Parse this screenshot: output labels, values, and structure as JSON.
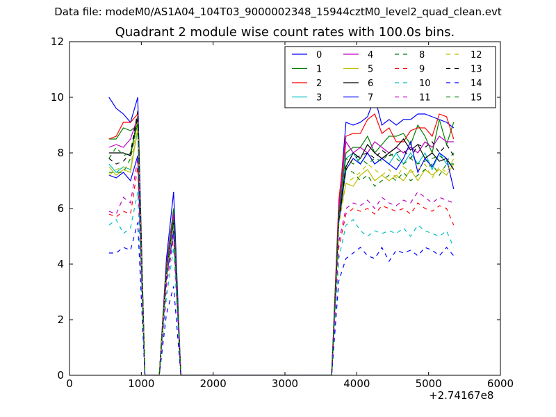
{
  "chart_data": {
    "type": "line",
    "suptitle": "Data file: modeM0/AS1A04_104T03_9000002348_15944cztM0_level2_quad_clean.evt",
    "title": "Quadrant 2 module wise count rates with 100.0s bins.",
    "xlabel": "",
    "ylabel": "",
    "x_offset_label": "+2.74167e8",
    "xlim": [
      0,
      6000
    ],
    "ylim": [
      0,
      12
    ],
    "xticks": [
      0,
      1000,
      2000,
      3000,
      4000,
      5000,
      6000
    ],
    "yticks": [
      0,
      2,
      4,
      6,
      8,
      10,
      12
    ],
    "grid": false,
    "legend": {
      "position": "top-right",
      "columns": 4
    },
    "x": [
      550,
      650,
      750,
      850,
      950,
      1050,
      1150,
      1250,
      1350,
      1450,
      1550,
      1650,
      1750,
      1850,
      1950,
      2050,
      2150,
      2250,
      2350,
      2450,
      2550,
      2650,
      2750,
      2850,
      2950,
      3050,
      3150,
      3250,
      3350,
      3450,
      3550,
      3650,
      3750,
      3850,
      3950,
      4050,
      4150,
      4250,
      4350,
      4450,
      4550,
      4650,
      4750,
      4850,
      4950,
      5050,
      5150,
      5250,
      5350
    ],
    "series": [
      {
        "name": "0",
        "color": "#0000ff",
        "dash": "solid",
        "values": [
          10.0,
          9.6,
          9.4,
          9.1,
          10.0,
          0,
          0,
          0,
          4.2,
          6.6,
          0,
          0,
          0,
          0,
          0,
          0,
          0,
          0,
          0,
          0,
          0,
          0,
          0,
          0,
          0,
          0,
          0,
          0,
          0,
          0,
          0,
          0,
          6.0,
          9.1,
          9.0,
          9.1,
          9.3,
          10.0,
          9.0,
          9.2,
          9.0,
          9.2,
          9.2,
          9.4,
          9.4,
          9.3,
          9.2,
          9.1,
          8.9
        ]
      },
      {
        "name": "1",
        "color": "#008000",
        "dash": "solid",
        "values": [
          8.5,
          8.5,
          8.9,
          8.8,
          9.0,
          0,
          0,
          0,
          4.0,
          6.0,
          0,
          0,
          0,
          0,
          0,
          0,
          0,
          0,
          0,
          0,
          0,
          0,
          0,
          0,
          0,
          0,
          0,
          0,
          0,
          0,
          0,
          0,
          6.0,
          8.0,
          8.2,
          8.2,
          8.6,
          8.0,
          8.3,
          8.6,
          8.6,
          8.7,
          8.3,
          9.0,
          8.6,
          8.0,
          9.2,
          8.3,
          9.1
        ]
      },
      {
        "name": "2",
        "color": "#ff0000",
        "dash": "solid",
        "values": [
          8.5,
          8.6,
          9.1,
          9.1,
          9.4,
          0,
          0,
          0,
          4.0,
          5.8,
          0,
          0,
          0,
          0,
          0,
          0,
          0,
          0,
          0,
          0,
          0,
          0,
          0,
          0,
          0,
          0,
          0,
          0,
          0,
          0,
          0,
          0,
          6.3,
          8.6,
          8.7,
          8.7,
          9.2,
          9.4,
          8.7,
          8.9,
          8.4,
          8.4,
          8.8,
          8.9,
          8.9,
          8.6,
          9.4,
          9.3,
          8.5
        ]
      },
      {
        "name": "3",
        "color": "#00bfbf",
        "dash": "solid",
        "values": [
          7.6,
          7.3,
          7.5,
          7.4,
          8.8,
          0,
          0,
          0,
          3.8,
          5.7,
          0,
          0,
          0,
          0,
          0,
          0,
          0,
          0,
          0,
          0,
          0,
          0,
          0,
          0,
          0,
          0,
          0,
          0,
          0,
          0,
          0,
          0,
          5.8,
          7.8,
          8.0,
          7.6,
          8.0,
          7.6,
          7.8,
          7.6,
          8.0,
          7.6,
          8.0,
          7.6,
          8.0,
          7.4,
          8.0,
          7.6,
          7.6
        ]
      },
      {
        "name": "4",
        "color": "#bf00bf",
        "dash": "solid",
        "values": [
          8.2,
          8.3,
          8.2,
          8.5,
          9.3,
          0,
          0,
          0,
          4.0,
          5.8,
          0,
          0,
          0,
          0,
          0,
          0,
          0,
          0,
          0,
          0,
          0,
          0,
          0,
          0,
          0,
          0,
          0,
          0,
          0,
          0,
          0,
          0,
          6.0,
          8.4,
          8.0,
          8.2,
          8.0,
          8.4,
          8.2,
          8.0,
          8.2,
          8.0,
          8.2,
          8.0,
          8.4,
          8.2,
          8.6,
          8.4,
          8.4
        ]
      },
      {
        "name": "5",
        "color": "#bfbf00",
        "dash": "solid",
        "values": [
          7.5,
          7.2,
          7.4,
          7.3,
          8.9,
          0,
          0,
          0,
          3.6,
          5.6,
          0,
          0,
          0,
          0,
          0,
          0,
          0,
          0,
          0,
          0,
          0,
          0,
          0,
          0,
          0,
          0,
          0,
          0,
          0,
          0,
          0,
          0,
          5.6,
          6.9,
          6.8,
          7.2,
          7.4,
          7.0,
          7.2,
          7.0,
          7.2,
          7.0,
          7.4,
          7.0,
          7.4,
          7.2,
          7.4,
          7.2,
          7.6
        ]
      },
      {
        "name": "6",
        "color": "#000000",
        "dash": "solid",
        "values": [
          8.0,
          8.0,
          8.0,
          7.9,
          9.3,
          0,
          0,
          0,
          3.8,
          5.5,
          0,
          0,
          0,
          0,
          0,
          0,
          0,
          0,
          0,
          0,
          0,
          0,
          0,
          0,
          0,
          0,
          0,
          0,
          0,
          0,
          0,
          0,
          5.8,
          7.5,
          8.0,
          7.8,
          8.3,
          8.0,
          7.8,
          8.0,
          8.2,
          8.5,
          8.1,
          8.3,
          7.8,
          8.0,
          7.7,
          7.8,
          7.4
        ]
      },
      {
        "name": "7",
        "color": "#0000ff",
        "dash": "solid",
        "values": [
          7.2,
          7.1,
          7.3,
          7.0,
          7.9,
          0,
          0,
          0,
          3.5,
          5.2,
          0,
          0,
          0,
          0,
          0,
          0,
          0,
          0,
          0,
          0,
          0,
          0,
          0,
          0,
          0,
          0,
          0,
          0,
          0,
          0,
          0,
          0,
          5.5,
          7.4,
          7.8,
          7.6,
          8.0,
          7.6,
          7.8,
          7.6,
          7.4,
          7.8,
          8.4,
          7.3,
          7.8,
          7.5,
          8.0,
          7.8,
          6.7
        ]
      },
      {
        "name": "8",
        "color": "#008000",
        "dash": "dashed",
        "values": [
          7.3,
          7.3,
          7.3,
          7.8,
          9.1,
          0,
          0,
          0,
          3.8,
          5.6,
          0,
          0,
          0,
          0,
          0,
          0,
          0,
          0,
          0,
          0,
          0,
          0,
          0,
          0,
          0,
          0,
          0,
          0,
          0,
          0,
          0,
          0,
          5.7,
          7.4,
          7.3,
          7.0,
          7.2,
          6.8,
          7.0,
          7.2,
          7.0,
          7.3,
          7.0,
          7.2,
          7.4,
          7.6,
          7.2,
          7.6,
          7.6
        ]
      },
      {
        "name": "9",
        "color": "#ff0000",
        "dash": "dashed",
        "values": [
          5.8,
          5.7,
          5.9,
          5.8,
          7.5,
          0,
          0,
          0,
          3.2,
          5.0,
          0,
          0,
          0,
          0,
          0,
          0,
          0,
          0,
          0,
          0,
          0,
          0,
          0,
          0,
          0,
          0,
          0,
          0,
          0,
          0,
          0,
          0,
          4.6,
          5.8,
          6.0,
          5.9,
          6.0,
          5.8,
          6.1,
          6.0,
          5.9,
          6.0,
          5.8,
          6.2,
          6.0,
          5.9,
          6.1,
          6.0,
          5.4
        ]
      },
      {
        "name": "10",
        "color": "#00bfbf",
        "dash": "dashed",
        "values": [
          5.4,
          5.6,
          5.1,
          5.3,
          6.6,
          0,
          0,
          0,
          2.8,
          4.6,
          0,
          0,
          0,
          0,
          0,
          0,
          0,
          0,
          0,
          0,
          0,
          0,
          0,
          0,
          0,
          0,
          0,
          0,
          0,
          0,
          0,
          0,
          4.2,
          5.4,
          5.6,
          5.2,
          5.0,
          5.2,
          5.1,
          5.2,
          5.1,
          5.3,
          5.0,
          5.4,
          5.2,
          5.1,
          5.0,
          5.2,
          4.6
        ]
      },
      {
        "name": "11",
        "color": "#bf00bf",
        "dash": "dashed",
        "values": [
          5.9,
          5.8,
          6.4,
          6.2,
          7.8,
          0,
          0,
          0,
          3.2,
          5.0,
          0,
          0,
          0,
          0,
          0,
          0,
          0,
          0,
          0,
          0,
          0,
          0,
          0,
          0,
          0,
          0,
          0,
          0,
          0,
          0,
          0,
          0,
          4.8,
          6.0,
          6.2,
          6.1,
          6.3,
          6.0,
          6.4,
          6.2,
          6.1,
          6.3,
          6.2,
          6.6,
          6.4,
          6.2,
          6.4,
          6.3,
          6.2
        ]
      },
      {
        "name": "12",
        "color": "#bfbf00",
        "dash": "dashed",
        "values": [
          7.2,
          7.4,
          7.5,
          7.4,
          9.3,
          0,
          0,
          0,
          3.6,
          5.4,
          0,
          0,
          0,
          0,
          0,
          0,
          0,
          0,
          0,
          0,
          0,
          0,
          0,
          0,
          0,
          0,
          0,
          0,
          0,
          0,
          0,
          0,
          5.4,
          6.9,
          7.1,
          7.3,
          7.6,
          7.4,
          7.2,
          7.4,
          7.1,
          7.5,
          7.3,
          7.4,
          7.6,
          7.1,
          7.5,
          7.3,
          7.8
        ]
      },
      {
        "name": "13",
        "color": "#000000",
        "dash": "dashed",
        "values": [
          7.8,
          7.6,
          7.7,
          8.0,
          9.5,
          0,
          0,
          0,
          3.8,
          5.6,
          0,
          0,
          0,
          0,
          0,
          0,
          0,
          0,
          0,
          0,
          0,
          0,
          0,
          0,
          0,
          0,
          0,
          0,
          0,
          0,
          0,
          0,
          5.6,
          7.4,
          7.8,
          7.9,
          8.0,
          7.8,
          8.1,
          7.9,
          8.0,
          8.1,
          7.8,
          8.3,
          8.2,
          8.4,
          8.0,
          8.3,
          7.9
        ]
      },
      {
        "name": "14",
        "color": "#0000ff",
        "dash": "dashed",
        "values": [
          4.4,
          4.4,
          4.6,
          4.5,
          5.5,
          0,
          0,
          0,
          2.2,
          3.2,
          0,
          0,
          0,
          0,
          0,
          0,
          0,
          0,
          0,
          0,
          0,
          0,
          0,
          0,
          0,
          0,
          0,
          0,
          0,
          0,
          0,
          0,
          3.4,
          4.2,
          4.4,
          4.6,
          4.3,
          4.2,
          4.6,
          4.1,
          4.5,
          4.4,
          4.5,
          4.3,
          4.6,
          4.5,
          4.3,
          4.6,
          4.3
        ]
      },
      {
        "name": "15",
        "color": "#008000",
        "dash": "dashed",
        "values": [
          7.8,
          8.2,
          7.9,
          8.0,
          9.1,
          0,
          0,
          0,
          3.8,
          5.6,
          0,
          0,
          0,
          0,
          0,
          0,
          0,
          0,
          0,
          0,
          0,
          0,
          0,
          0,
          0,
          0,
          0,
          0,
          0,
          0,
          0,
          0,
          5.8,
          7.8,
          7.6,
          7.8,
          7.6,
          7.8,
          7.7,
          8.0,
          7.8,
          7.6,
          7.8,
          7.6,
          7.7,
          7.8,
          7.9,
          7.7,
          8.0
        ]
      }
    ]
  }
}
